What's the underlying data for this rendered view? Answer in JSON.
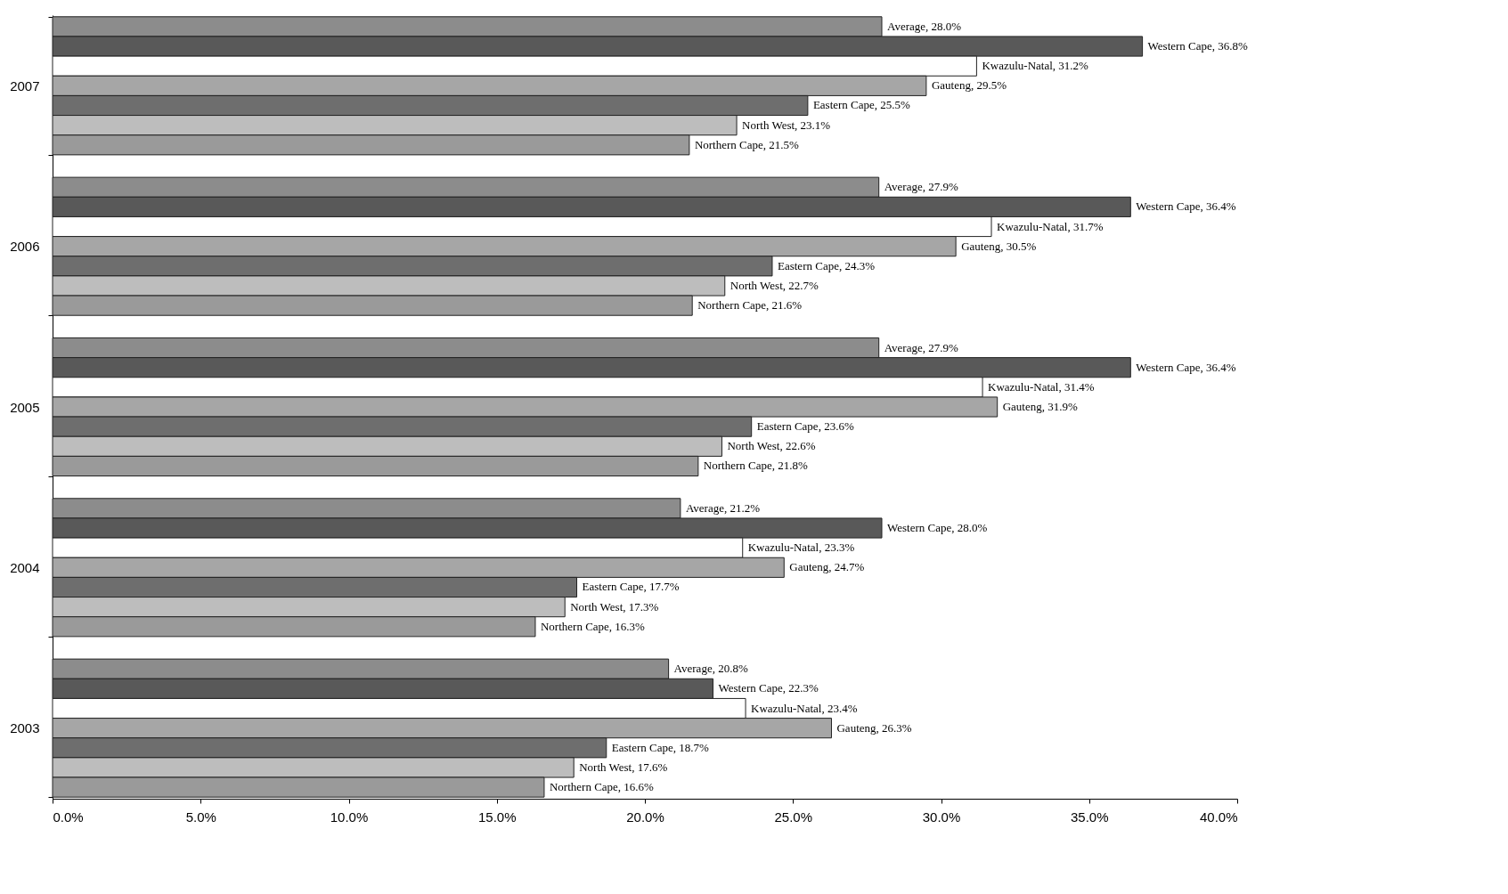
{
  "chart_data": {
    "type": "bar",
    "orientation": "horizontal",
    "categories": [
      "2007",
      "2006",
      "2005",
      "2004",
      "2003"
    ],
    "series": [
      {
        "color": "#8c8c8c",
        "values": [
          28.0,
          27.9,
          27.9,
          21.2,
          20.8
        ],
        "value_labels": [
          "Average, 28.0%",
          "Average, 27.9%",
          "Average, 27.9%",
          "Average, 21.2%",
          "Average, 20.8%"
        ]
      },
      {
        "color": "#595959",
        "values": [
          36.8,
          36.4,
          36.4,
          28.0,
          22.3
        ],
        "value_labels": [
          "Western Cape, 36.8%",
          "Western Cape, 36.4%",
          "Western Cape, 36.4%",
          "Western Cape, 28.0%",
          "Western Cape, 22.3%"
        ]
      },
      {
        "color": "#ffffff",
        "values": [
          31.2,
          31.7,
          31.4,
          23.3,
          23.4
        ],
        "value_labels": [
          "Kwazulu-Natal, 31.2%",
          "Kwazulu-Natal, 31.7%",
          "Kwazulu-Natal, 31.4%",
          "Kwazulu-Natal, 23.3%",
          "Kwazulu-Natal, 23.4%"
        ]
      },
      {
        "color": "#a6a6a6",
        "values": [
          29.5,
          30.5,
          31.9,
          24.7,
          26.3
        ],
        "value_labels": [
          "Gauteng, 29.5%",
          "Gauteng, 30.5%",
          "Gauteng, 31.9%",
          "Gauteng, 24.7%",
          "Gauteng, 26.3%"
        ]
      },
      {
        "color": "#6e6e6e",
        "values": [
          25.5,
          24.3,
          23.6,
          17.7,
          18.7
        ],
        "value_labels": [
          "Eastern Cape, 25.5%",
          "Eastern Cape, 24.3%",
          "Eastern Cape, 23.6%",
          "Eastern Cape, 17.7%",
          "Eastern Cape, 18.7%"
        ]
      },
      {
        "color": "#bdbdbd",
        "values": [
          23.1,
          22.7,
          22.6,
          17.3,
          17.6
        ],
        "value_labels": [
          "North West, 23.1%",
          "North West, 22.7%",
          "North West, 22.6%",
          "North West, 17.3%",
          "North West, 17.6%"
        ]
      },
      {
        "color": "#9a9a9a",
        "values": [
          21.5,
          21.6,
          21.8,
          16.3,
          16.6
        ],
        "value_labels": [
          "Northern Cape, 21.5%",
          "Northern Cape, 21.6%",
          "Northern Cape, 21.8%",
          "Northern Cape, 16.3%",
          "Northern Cape, 16.6%"
        ]
      }
    ],
    "xlim": [
      0,
      40
    ],
    "xticks": [
      {
        "value": 0,
        "label": "0.0%"
      },
      {
        "value": 5,
        "label": "5.0%"
      },
      {
        "value": 10,
        "label": "10.0%"
      },
      {
        "value": 15,
        "label": "15.0%"
      },
      {
        "value": 20,
        "label": "20.0%"
      },
      {
        "value": 25,
        "label": "25.0%"
      },
      {
        "value": 30,
        "label": "30.0%"
      },
      {
        "value": 35,
        "label": "35.0%"
      },
      {
        "value": 40,
        "label": "40.0%"
      }
    ],
    "grid": false,
    "legend": false
  }
}
